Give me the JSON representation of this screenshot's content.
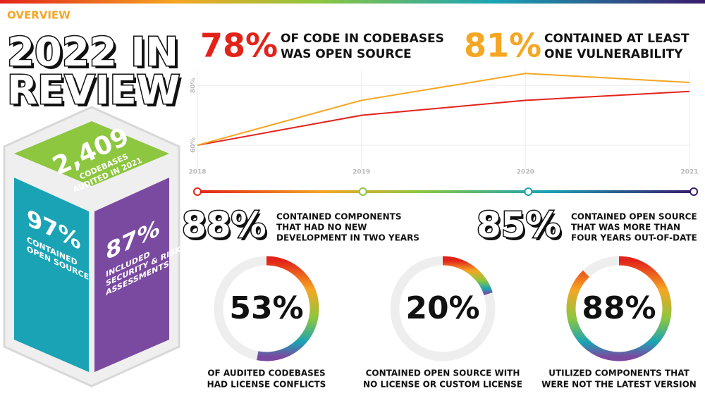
{
  "header": "OVERVIEW",
  "title": [
    "2022 IN",
    "REVIEW"
  ],
  "cube": {
    "top": {
      "value": "2,409",
      "caption": [
        "CODEBASES",
        "AUDITED IN 2021"
      ]
    },
    "left": {
      "value": "97%",
      "caption": [
        "CONTAINED",
        "OPEN SOURCE"
      ]
    },
    "right": {
      "value": "87%",
      "caption": [
        "INCLUDED",
        "SECURITY & RISK",
        "ASSESSMENTS"
      ]
    }
  },
  "headlines": [
    {
      "value": "78%",
      "caption": [
        "OF CODE IN CODEBASES",
        "WAS OPEN SOURCE"
      ],
      "color": "#e2231a"
    },
    {
      "value": "81%",
      "caption": [
        "CONTAINED AT LEAST",
        "ONE VULNERABILITY"
      ],
      "color": "#f5a623"
    }
  ],
  "chart_data": {
    "type": "line",
    "x": [
      2018,
      2019,
      2020,
      2021
    ],
    "xlim": [
      2018,
      2021
    ],
    "xticks": [
      2018,
      2019,
      2020,
      2021
    ],
    "ylim": [
      52,
      85
    ],
    "yticks": [
      {
        "value": 60,
        "label": "60%"
      },
      {
        "value": 80,
        "label": "80%"
      }
    ],
    "grid": true,
    "series": [
      {
        "color": "#e2231a",
        "values": [
          60,
          70,
          75,
          78
        ]
      },
      {
        "color": "#f5a623",
        "values": [
          60,
          75,
          84,
          81
        ]
      }
    ]
  },
  "stats": [
    {
      "value": "88%",
      "caption": [
        "CONTAINED COMPONENTS",
        "THAT HAD NO NEW",
        "DEVELOPMENT IN TWO YEARS"
      ]
    },
    {
      "value": "85%",
      "caption": [
        "CONTAINED OPEN SOURCE",
        "THAT WAS MORE THAN",
        "FOUR YEARS OUT-OF-DATE"
      ]
    }
  ],
  "donuts": [
    {
      "value": 53,
      "label": "53%",
      "caption": [
        "OF AUDITED CODEBASES",
        "HAD LICENSE CONFLICTS"
      ]
    },
    {
      "value": 20,
      "label": "20%",
      "caption": [
        "CONTAINED OPEN SOURCE WITH",
        "NO LICENSE OR CUSTOM LICENSE"
      ]
    },
    {
      "value": 88,
      "label": "88%",
      "caption": [
        "UTILIZED COMPONENTS THAT",
        "WERE NOT THE LATEST VERSION"
      ]
    }
  ]
}
